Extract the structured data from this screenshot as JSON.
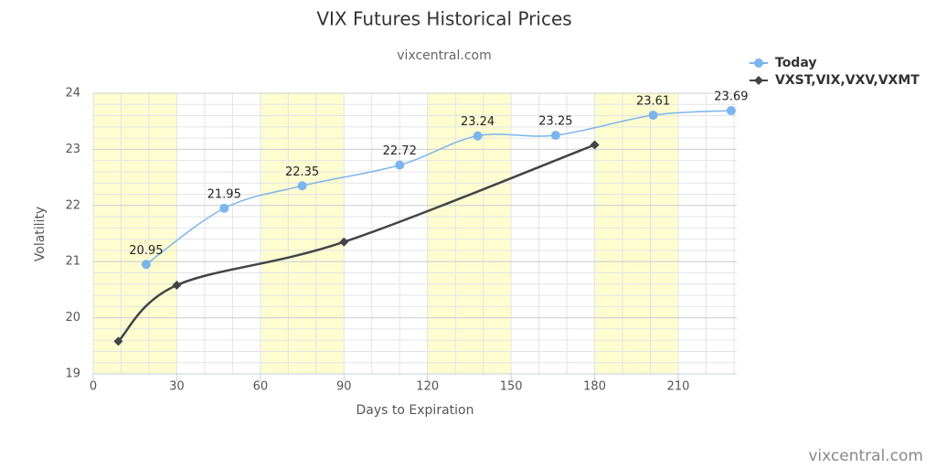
{
  "chart_data": {
    "type": "line",
    "title": "VIX Futures Historical Prices",
    "subtitle": "vixcentral.com",
    "credits": "vixcentral.com",
    "x_label": "Days to Expiration",
    "y_label": "Volatility",
    "xlim": [
      0,
      231
    ],
    "xticks": [
      0,
      30,
      60,
      90,
      120,
      150,
      180,
      210
    ],
    "ylim": [
      19,
      24
    ],
    "yticks": [
      19,
      20,
      21,
      22,
      23,
      24
    ],
    "x_minor_step": 10,
    "y_minor_step": 0.2,
    "plot_bands": [
      [
        0,
        30
      ],
      [
        60,
        90
      ],
      [
        120,
        150
      ],
      [
        180,
        210
      ]
    ],
    "band_color": "#fdfdd0",
    "grid": true,
    "smooth": true,
    "legend": "top-right",
    "series": [
      {
        "name": "Today",
        "color": "#7cb5ec",
        "marker": "circle",
        "x": [
          19,
          47,
          75,
          110,
          138,
          166,
          201,
          229
        ],
        "values": [
          20.95,
          21.95,
          22.35,
          22.72,
          23.24,
          23.25,
          23.61,
          23.69
        ],
        "data_labels": true
      },
      {
        "name": "VXST,VIX,VXV,VXMT",
        "color": "#434348",
        "marker": "diamond",
        "x": [
          9,
          30,
          90,
          180
        ],
        "values": [
          19.58,
          20.58,
          21.35,
          23.08
        ],
        "data_labels": false
      }
    ]
  }
}
